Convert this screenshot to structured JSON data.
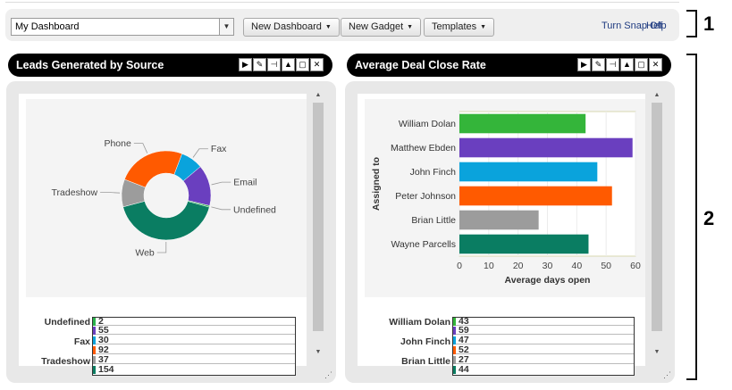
{
  "toolbar": {
    "dashboard_select_value": "My Dashboard",
    "new_dashboard_label": "New Dashboard",
    "new_gadget_label": "New Gadget",
    "templates_label": "Templates",
    "turn_snap_off_label": "Turn Snap Off",
    "help_label": "Help"
  },
  "callouts": {
    "one": "1",
    "two": "2"
  },
  "panel_icons": [
    "▶",
    "✎",
    "⊣",
    "▲",
    "▢",
    "✕"
  ],
  "leads_panel": {
    "title": "Leads Generated by Source",
    "table": {
      "labels": [
        "Undefined",
        "Fax",
        "Tradeshow"
      ],
      "values": [
        "2",
        "55",
        "30",
        "92",
        "37",
        "154"
      ]
    }
  },
  "deal_panel": {
    "title": "Average Deal Close Rate",
    "table": {
      "labels": [
        "William Dolan",
        "John Finch",
        "Brian Little"
      ],
      "values": [
        "43",
        "59",
        "47",
        "52",
        "27",
        "44"
      ]
    }
  },
  "chart_data": [
    {
      "type": "pie",
      "donut": true,
      "labels": [
        "Fax",
        "Email",
        "Undefined",
        "Web",
        "Tradeshow",
        "Phone"
      ],
      "values": [
        30,
        55,
        2,
        154,
        37,
        92
      ],
      "colors": [
        "#0aa3dc",
        "#6a3fbf",
        "#2bb24c",
        "#0a7d62",
        "#9c9c9c",
        "#ff5a00"
      ]
    },
    {
      "type": "bar",
      "orientation": "horizontal",
      "categories": [
        "William Dolan",
        "Matthew Ebden",
        "John Finch",
        "Peter Johnson",
        "Brian Little",
        "Wayne Parcells"
      ],
      "values": [
        43,
        59,
        47,
        52,
        27,
        44
      ],
      "colors": [
        "#34b53a",
        "#6a3fbf",
        "#0aa3dc",
        "#ff5a00",
        "#9c9c9c",
        "#0a7d62"
      ],
      "xlabel": "Average days open",
      "ylabel": "Assigned to",
      "xlim": [
        0,
        60
      ],
      "xticks": [
        "0",
        "10",
        "20",
        "30",
        "40",
        "50",
        "60"
      ]
    }
  ]
}
